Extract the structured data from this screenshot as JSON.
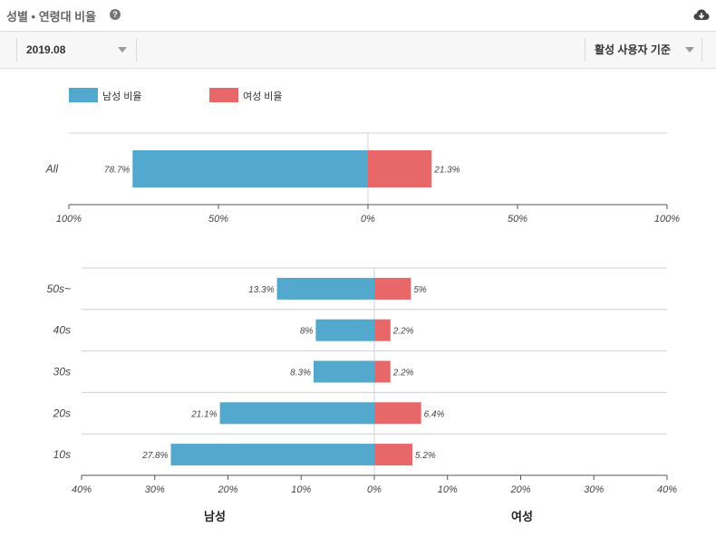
{
  "header": {
    "title": "성별 • 연령대 비율",
    "help_icon": "question-circle-icon",
    "download_icon": "cloud-download-icon"
  },
  "toolbar": {
    "month_select": "2019.08",
    "basis_select": "활성 사용자 기준"
  },
  "colors": {
    "male": "#53a9cd",
    "female": "#e8686a",
    "grid": "#d0d0d0",
    "axis": "#555555"
  },
  "legend": [
    {
      "label": "남성 비율",
      "color": "#53a9cd"
    },
    {
      "label": "여성 비율",
      "color": "#e8686a"
    }
  ],
  "chart_data": [
    {
      "type": "bar",
      "orientation": "horizontal-diverging",
      "categories": [
        "All"
      ],
      "series": [
        {
          "name": "남성 비율",
          "values": [
            78.7
          ],
          "labels": [
            "78.7%"
          ]
        },
        {
          "name": "여성 비율",
          "values": [
            21.3
          ],
          "labels": [
            "21.3%"
          ]
        }
      ],
      "xlim": [
        -100,
        100
      ],
      "ticks": [
        "100%",
        "50%",
        "0%",
        "50%",
        "100%"
      ]
    },
    {
      "type": "bar",
      "orientation": "horizontal-diverging",
      "categories": [
        "50s~",
        "40s",
        "30s",
        "20s",
        "10s"
      ],
      "series": [
        {
          "name": "남성 비율",
          "values": [
            13.3,
            8,
            8.3,
            21.1,
            27.8
          ],
          "labels": [
            "13.3%",
            "8%",
            "8.3%",
            "21.1%",
            "27.8%"
          ]
        },
        {
          "name": "여성 비율",
          "values": [
            5,
            2.2,
            2.2,
            6.4,
            5.2
          ],
          "labels": [
            "5%",
            "2.2%",
            "2.2%",
            "6.4%",
            "5.2%"
          ]
        }
      ],
      "xlim": [
        -40,
        40
      ],
      "ticks": [
        "40%",
        "30%",
        "20%",
        "10%",
        "0%",
        "10%",
        "20%",
        "30%",
        "40%"
      ],
      "xlabel_left": "남성",
      "xlabel_right": "여성"
    }
  ]
}
